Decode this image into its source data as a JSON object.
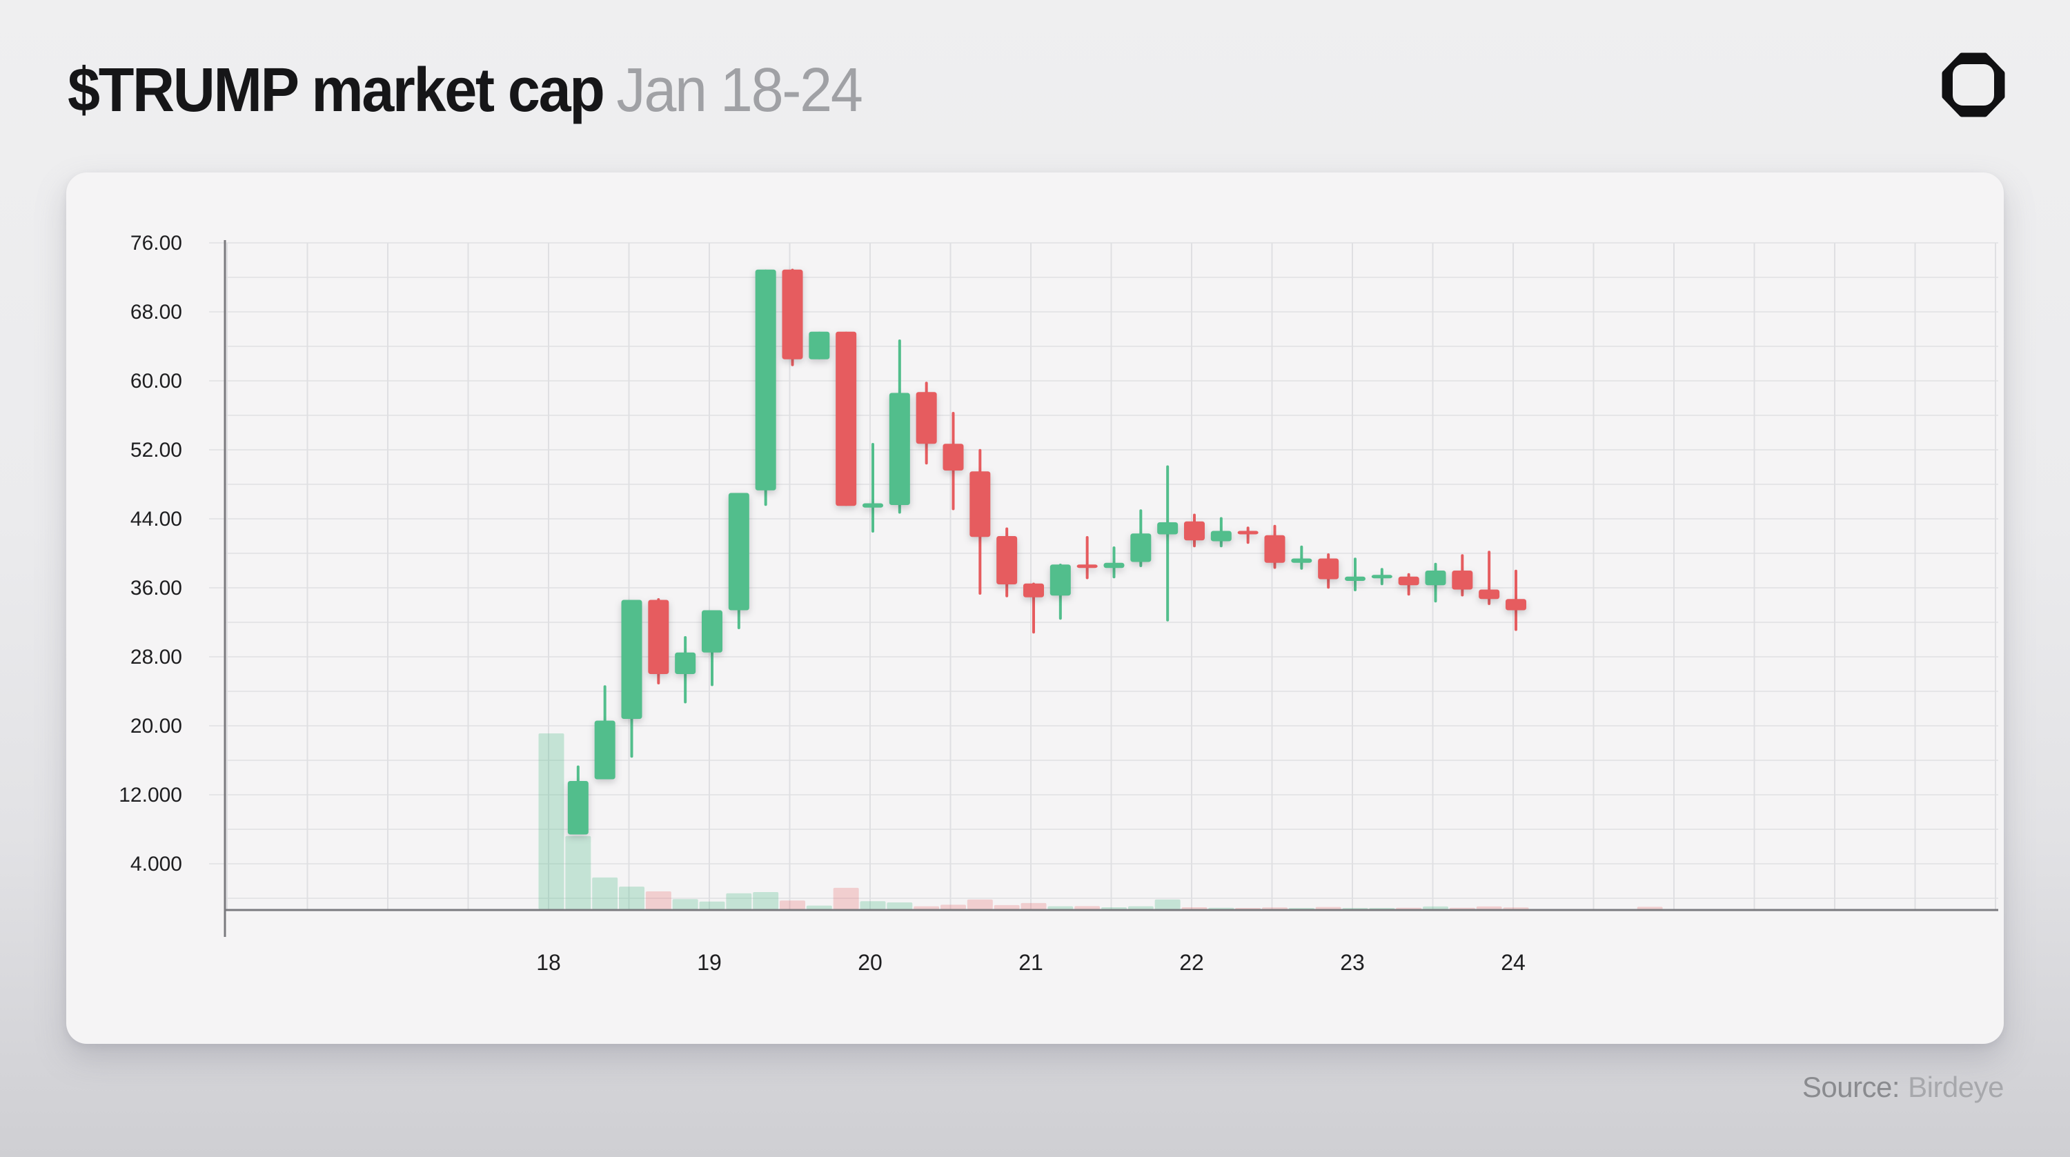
{
  "header": {
    "title": "$TRUMP market cap",
    "subtitle": "Jan 18-24",
    "logo_icon": "octagon-ring-icon"
  },
  "footer": {
    "source_label": "Source:",
    "source_value": "Birdeye"
  },
  "colors": {
    "up": "#52be8c",
    "down": "#e65c5f",
    "volume_up": "rgba(82,190,140,0.30)",
    "volume_down": "rgba(230,92,95,0.25)",
    "grid_h": "#e5e5e7",
    "grid_v": "#dfdfe2",
    "axis": "#7a7a7e",
    "tick_label": "#1e1e20",
    "card_bg": "#f5f4f5"
  },
  "chart_data": {
    "type": "candlestick_with_volume",
    "title": "$TRUMP market cap",
    "period": "Jan 18-24",
    "legend": "none",
    "grid": "on",
    "x_axis": {
      "tick_labels": [
        "18",
        "19",
        "20",
        "21",
        "22",
        "23",
        "24"
      ],
      "gridline_interval_hours": 12,
      "candle_interval_hours": 4
    },
    "y_axis": {
      "tick_labels": [
        "76.00",
        "68.00",
        "60.00",
        "52.00",
        "44.00",
        "36.00",
        "28.00",
        "20.00",
        "12.000",
        "4.000"
      ],
      "min": 0,
      "max": 76,
      "gridline_step": 4
    },
    "volume_unit": "relative, max bar = 100",
    "candles": [
      {
        "i": 0,
        "o": null,
        "h": null,
        "l": null,
        "c": null,
        "v": 100,
        "dir": "up"
      },
      {
        "i": 1,
        "o": 7.4,
        "h": 15.4,
        "l": 7.4,
        "c": 13.6,
        "v": 41.6
      },
      {
        "i": 2,
        "o": 13.8,
        "h": 24.7,
        "l": 13.8,
        "c": 20.6,
        "v": 18.1
      },
      {
        "i": 3,
        "o": 20.8,
        "h": 34.6,
        "l": 16.3,
        "c": 34.6,
        "v": 12.9
      },
      {
        "i": 4,
        "o": 34.6,
        "h": 34.8,
        "l": 24.8,
        "c": 26.0,
        "v": 10.2
      },
      {
        "i": 5,
        "o": 26.0,
        "h": 30.4,
        "l": 22.6,
        "c": 28.5,
        "v": 5.8
      },
      {
        "i": 6,
        "o": 28.5,
        "h": 33.4,
        "l": 24.6,
        "c": 33.4,
        "v": 4.4
      },
      {
        "i": 7,
        "o": 33.4,
        "h": 47.0,
        "l": 31.2,
        "c": 47.0,
        "v": 9.1
      },
      {
        "i": 8,
        "o": 47.3,
        "h": 72.9,
        "l": 45.5,
        "c": 72.9,
        "v": 9.8
      },
      {
        "i": 9,
        "o": 72.9,
        "h": 73.0,
        "l": 61.7,
        "c": 62.5,
        "v": 5.0
      },
      {
        "i": 10,
        "o": 62.5,
        "h": 65.7,
        "l": 62.5,
        "c": 65.7,
        "v": 2.1
      },
      {
        "i": 11,
        "o": 65.7,
        "h": 65.7,
        "l": 45.5,
        "c": 45.5,
        "v": 12.2
      },
      {
        "i": 12,
        "o": 45.3,
        "h": 52.8,
        "l": 42.4,
        "c": 45.8,
        "v": 4.6
      },
      {
        "i": 13,
        "o": 45.6,
        "h": 64.8,
        "l": 44.6,
        "c": 58.6,
        "v": 3.9
      },
      {
        "i": 14,
        "o": 58.7,
        "h": 59.9,
        "l": 50.3,
        "c": 52.7,
        "v": 1.7
      },
      {
        "i": 15,
        "o": 52.7,
        "h": 56.4,
        "l": 45.0,
        "c": 49.6,
        "v": 2.6
      },
      {
        "i": 16,
        "o": 49.5,
        "h": 52.1,
        "l": 35.2,
        "c": 41.9,
        "v": 5.6
      },
      {
        "i": 17,
        "o": 42.0,
        "h": 43.0,
        "l": 34.9,
        "c": 36.4,
        "v": 2.4
      },
      {
        "i": 18,
        "o": 36.5,
        "h": 36.6,
        "l": 30.7,
        "c": 34.9,
        "v": 3.6
      },
      {
        "i": 19,
        "o": 35.1,
        "h": 38.8,
        "l": 32.3,
        "c": 38.7,
        "v": 1.7
      },
      {
        "i": 20,
        "o": 38.7,
        "h": 42.0,
        "l": 37.0,
        "c": 38.3,
        "v": 1.8
      },
      {
        "i": 21,
        "o": 38.3,
        "h": 40.8,
        "l": 37.1,
        "c": 38.9,
        "v": 1.2
      },
      {
        "i": 22,
        "o": 39.0,
        "h": 45.1,
        "l": 38.4,
        "c": 42.3,
        "v": 1.7
      },
      {
        "i": 23,
        "o": 42.2,
        "h": 50.2,
        "l": 32.1,
        "c": 43.6,
        "v": 5.6
      },
      {
        "i": 24,
        "o": 43.7,
        "h": 44.6,
        "l": 40.7,
        "c": 41.5,
        "v": 1.2
      },
      {
        "i": 25,
        "o": 41.4,
        "h": 44.2,
        "l": 40.7,
        "c": 42.6,
        "v": 0.9
      },
      {
        "i": 26,
        "o": 42.6,
        "h": 43.1,
        "l": 41.1,
        "c": 42.2,
        "v": 0.4
      },
      {
        "i": 27,
        "o": 42.1,
        "h": 43.3,
        "l": 38.2,
        "c": 38.9,
        "v": 1.1
      },
      {
        "i": 28,
        "o": 38.9,
        "h": 40.9,
        "l": 38.1,
        "c": 39.4,
        "v": 0.7
      },
      {
        "i": 29,
        "o": 39.4,
        "h": 40.0,
        "l": 35.9,
        "c": 37.0,
        "v": 1.3
      },
      {
        "i": 30,
        "o": 36.8,
        "h": 39.5,
        "l": 35.6,
        "c": 37.3,
        "v": 0.5
      },
      {
        "i": 31,
        "o": 37.1,
        "h": 38.3,
        "l": 36.3,
        "c": 37.5,
        "v": 0.8
      },
      {
        "i": 32,
        "o": 37.3,
        "h": 37.7,
        "l": 35.1,
        "c": 36.3,
        "v": 0.9
      },
      {
        "i": 33,
        "o": 36.3,
        "h": 38.9,
        "l": 34.3,
        "c": 38.0,
        "v": 1.6
      },
      {
        "i": 34,
        "o": 38.0,
        "h": 39.9,
        "l": 35.0,
        "c": 35.8,
        "v": 0.9
      },
      {
        "i": 35,
        "o": 35.8,
        "h": 40.3,
        "l": 34.0,
        "c": 34.7,
        "v": 1.6
      },
      {
        "i": 36,
        "o": 34.7,
        "h": 38.1,
        "l": 31.0,
        "c": 33.4,
        "v": 1.1
      },
      {
        "i": 41,
        "o": null,
        "h": null,
        "l": null,
        "c": null,
        "v": 1.4,
        "dir": "down"
      }
    ]
  }
}
